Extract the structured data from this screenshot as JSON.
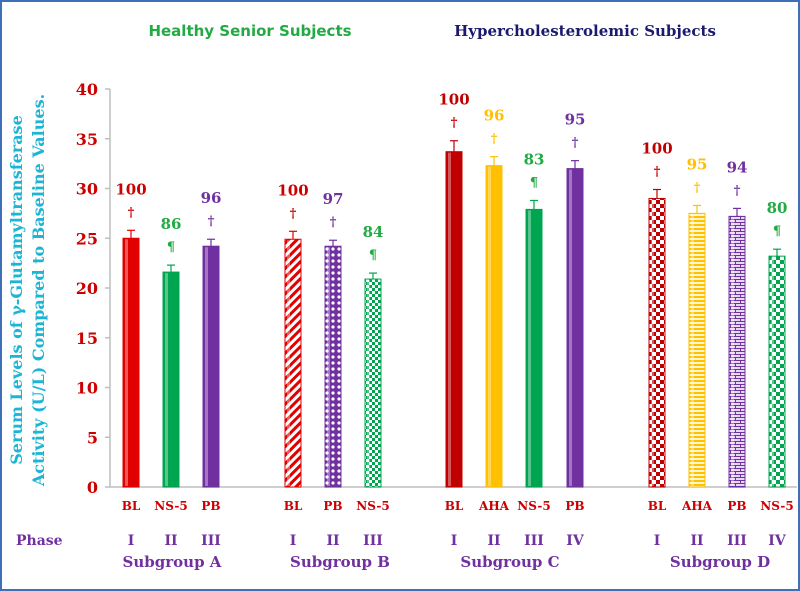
{
  "chart_data": {
    "type": "bar",
    "group_titles": [
      {
        "text": "Healthy Senior  Subjects",
        "color": "#22aa44"
      },
      {
        "text": "Hypercholesterolemic Subjects",
        "color": "#1a1a6e"
      }
    ],
    "ylabel_line1": "Serum Levels of γ-Glutamyltransferase",
    "ylabel_line2": "Activity (U/L) Compared to Baseline Values.",
    "ylim": [
      0,
      40
    ],
    "yticks": [
      0,
      5,
      10,
      15,
      20,
      25,
      30,
      35,
      40
    ],
    "phase_label": "Phase",
    "subgroups": [
      {
        "name": "Subgroup  A",
        "bars": [
          {
            "label": "BL",
            "phase": "I",
            "value": 25.0,
            "err": 0.8,
            "pct": "100",
            "mark": "†",
            "color": "#e00000",
            "pattern": "solid"
          },
          {
            "label": "NS-5",
            "phase": "II",
            "value": 21.6,
            "err": 0.7,
            "pct": "86",
            "mark": "¶",
            "color": "#00a550",
            "pattern": "solid"
          },
          {
            "label": "PB",
            "phase": "III",
            "value": 24.2,
            "err": 0.7,
            "pct": "96",
            "mark": "†",
            "color": "#7030a0",
            "pattern": "solid"
          }
        ]
      },
      {
        "name": "Subgroup  B",
        "bars": [
          {
            "label": "BL",
            "phase": "I",
            "value": 24.9,
            "err": 0.8,
            "pct": "100",
            "mark": "†",
            "color": "#e00000",
            "pattern": "diag"
          },
          {
            "label": "PB",
            "phase": "II",
            "value": 24.2,
            "err": 0.6,
            "pct": "97",
            "mark": "†",
            "color": "#7030a0",
            "pattern": "dots"
          },
          {
            "label": "NS-5",
            "phase": "III",
            "value": 20.9,
            "err": 0.6,
            "pct": "84",
            "mark": "¶",
            "color": "#00a550",
            "pattern": "grid"
          }
        ]
      },
      {
        "name": "Subgroup  C",
        "bars": [
          {
            "label": "BL",
            "phase": "I",
            "value": 33.7,
            "err": 1.1,
            "pct": "100",
            "mark": "†",
            "color": "#c00000",
            "pattern": "solid"
          },
          {
            "label": "AHA",
            "phase": "II",
            "value": 32.3,
            "err": 0.9,
            "pct": "96",
            "mark": "†",
            "color": "#ffc000",
            "pattern": "solid"
          },
          {
            "label": "NS-5",
            "phase": "III",
            "value": 27.9,
            "err": 0.9,
            "pct": "83",
            "mark": "¶",
            "color": "#00a550",
            "pattern": "solid"
          },
          {
            "label": "PB",
            "phase": "IV",
            "value": 32.0,
            "err": 0.8,
            "pct": "95",
            "mark": "†",
            "color": "#7030a0",
            "pattern": "solid"
          }
        ]
      },
      {
        "name": "Subgroup  D",
        "bars": [
          {
            "label": "BL",
            "phase": "I",
            "value": 29.0,
            "err": 0.9,
            "pct": "100",
            "mark": "†",
            "color": "#c00000",
            "pattern": "check"
          },
          {
            "label": "AHA",
            "phase": "II",
            "value": 27.5,
            "err": 0.8,
            "pct": "95",
            "mark": "†",
            "color": "#ffc000",
            "pattern": "hlines"
          },
          {
            "label": "PB",
            "phase": "III",
            "value": 27.2,
            "err": 0.8,
            "pct": "94",
            "mark": "†",
            "color": "#7030a0",
            "pattern": "brick"
          },
          {
            "label": "NS-5",
            "phase": "IV",
            "value": 23.2,
            "err": 0.7,
            "pct": "80",
            "mark": "¶",
            "color": "#00a550",
            "pattern": "check"
          }
        ]
      }
    ]
  }
}
